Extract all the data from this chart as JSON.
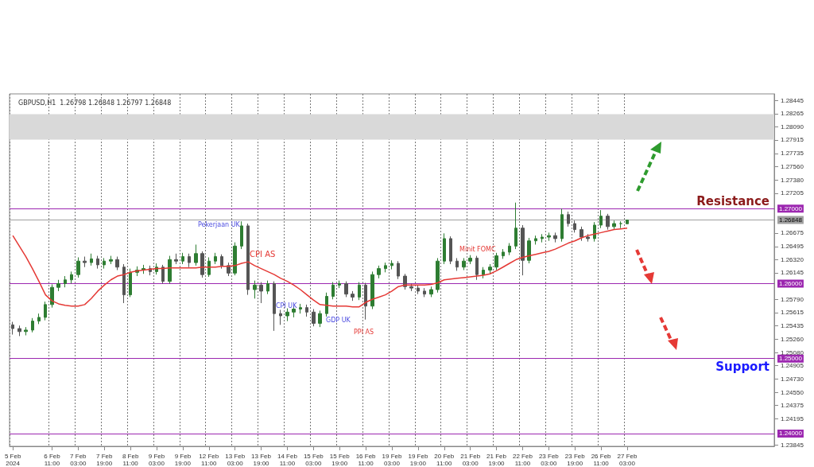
{
  "chart_data": {
    "type": "candlestick",
    "title": "GBPUSD,H1  1.26798 1.26848 1.26797 1.26848",
    "categories": [
      "5 Feb 2024",
      null,
      null,
      null,
      null,
      null,
      "6 Feb 11:00",
      null,
      null,
      null,
      "7 Feb 03:00",
      null,
      null,
      null,
      "7 Feb 19:00",
      null,
      null,
      null,
      "8 Feb 11:00",
      null,
      null,
      null,
      "9 Feb 03:00",
      null,
      null,
      null,
      "9 Feb 19:00",
      null,
      null,
      null,
      "12 Feb 11:00",
      null,
      null,
      null,
      "13 Feb 03:00",
      null,
      null,
      null,
      "13 Feb 19:00",
      null,
      null,
      null,
      "14 Feb 11:00",
      null,
      null,
      null,
      "15 Feb 03:00",
      null,
      null,
      null,
      "15 Feb 19:00",
      null,
      null,
      null,
      "16 Feb 11:00",
      null,
      null,
      null,
      "19 Feb 03:00",
      null,
      null,
      null,
      "19 Feb 19:00",
      null,
      null,
      null,
      "20 Feb 11:00",
      null,
      null,
      null,
      "21 Feb 03:00",
      null,
      null,
      null,
      "21 Feb 19:00",
      null,
      null,
      null,
      "22 Feb 11:00",
      null,
      null,
      null,
      "23 Feb 03:00",
      null,
      null,
      null,
      "23 Feb 19:00",
      null,
      null,
      null,
      "26 Feb 11:00",
      null,
      null,
      null,
      "27 Feb 03:00",
      null,
      null,
      null,
      null,
      null,
      null,
      null,
      null,
      null,
      null,
      null,
      null,
      null,
      null,
      null,
      null,
      null,
      null,
      null,
      null,
      null,
      null
    ],
    "ohlc": [
      [
        1.2545,
        1.2549,
        1.2532,
        1.254
      ],
      [
        1.254,
        1.2544,
        1.253,
        1.2536
      ],
      [
        1.2536,
        1.2542,
        1.2531,
        1.2538
      ],
      [
        1.2538,
        1.2554,
        1.2535,
        1.255
      ],
      [
        1.255,
        1.256,
        1.2546,
        1.2555
      ],
      [
        1.2555,
        1.2576,
        1.2551,
        1.2572
      ],
      [
        1.2572,
        1.2599,
        1.2568,
        1.2595
      ],
      [
        1.2595,
        1.2605,
        1.259,
        1.26
      ],
      [
        1.26,
        1.261,
        1.2595,
        1.2605
      ],
      [
        1.2605,
        1.2616,
        1.26,
        1.2612
      ],
      [
        1.2612,
        1.2635,
        1.2608,
        1.263
      ],
      [
        1.263,
        1.2636,
        1.2622,
        1.2628
      ],
      [
        1.2628,
        1.264,
        1.2624,
        1.2633
      ],
      [
        1.2633,
        1.2637,
        1.262,
        1.2625
      ],
      [
        1.2625,
        1.2634,
        1.262,
        1.263
      ],
      [
        1.263,
        1.2637,
        1.2626,
        1.2632
      ],
      [
        1.2632,
        1.2636,
        1.2618,
        1.2622
      ],
      [
        1.2622,
        1.2626,
        1.2574,
        1.2585
      ],
      [
        1.2585,
        1.262,
        1.2582,
        1.2615
      ],
      [
        1.2615,
        1.2623,
        1.261,
        1.2618
      ],
      [
        1.2618,
        1.2625,
        1.2613,
        1.262
      ],
      [
        1.262,
        1.2624,
        1.2611,
        1.2616
      ],
      [
        1.2616,
        1.2627,
        1.2612,
        1.2622
      ],
      [
        1.2622,
        1.2625,
        1.26,
        1.2603
      ],
      [
        1.2603,
        1.2637,
        1.26,
        1.2632
      ],
      [
        1.2632,
        1.264,
        1.2626,
        1.263
      ],
      [
        1.263,
        1.2641,
        1.2626,
        1.2636
      ],
      [
        1.2636,
        1.264,
        1.2622,
        1.2628
      ],
      [
        1.2628,
        1.2652,
        1.2624,
        1.264
      ],
      [
        1.264,
        1.2643,
        1.2608,
        1.2612
      ],
      [
        1.2612,
        1.2635,
        1.2609,
        1.263
      ],
      [
        1.263,
        1.2641,
        1.2626,
        1.2636
      ],
      [
        1.2636,
        1.2639,
        1.262,
        1.2624
      ],
      [
        1.2624,
        1.2628,
        1.261,
        1.2614
      ],
      [
        1.2614,
        1.2655,
        1.2611,
        1.265
      ],
      [
        1.265,
        1.2683,
        1.2646,
        1.2677
      ],
      [
        1.2677,
        1.268,
        1.2585,
        1.2592
      ],
      [
        1.2592,
        1.2604,
        1.258,
        1.2598
      ],
      [
        1.2598,
        1.2602,
        1.2574,
        1.259
      ],
      [
        1.259,
        1.2604,
        1.2586,
        1.26
      ],
      [
        1.26,
        1.2603,
        1.2537,
        1.256
      ],
      [
        1.256,
        1.2565,
        1.2545,
        1.2557
      ],
      [
        1.2557,
        1.2567,
        1.255,
        1.2562
      ],
      [
        1.2562,
        1.257,
        1.2555,
        1.2566
      ],
      [
        1.2566,
        1.2573,
        1.256,
        1.2568
      ],
      [
        1.2568,
        1.2572,
        1.2556,
        1.2562
      ],
      [
        1.2562,
        1.2566,
        1.2543,
        1.2547
      ],
      [
        1.2547,
        1.2564,
        1.2542,
        1.256
      ],
      [
        1.256,
        1.2588,
        1.2556,
        1.2583
      ],
      [
        1.2583,
        1.2602,
        1.2579,
        1.2598
      ],
      [
        1.2598,
        1.2604,
        1.2594,
        1.26
      ],
      [
        1.26,
        1.2603,
        1.2582,
        1.2586
      ],
      [
        1.2586,
        1.259,
        1.2577,
        1.2582
      ],
      [
        1.2582,
        1.2602,
        1.2578,
        1.2598
      ],
      [
        1.2598,
        1.2601,
        1.2552,
        1.257
      ],
      [
        1.257,
        1.2616,
        1.2566,
        1.2612
      ],
      [
        1.2612,
        1.2624,
        1.2607,
        1.262
      ],
      [
        1.262,
        1.2628,
        1.2615,
        1.2624
      ],
      [
        1.2624,
        1.2631,
        1.2619,
        1.2627
      ],
      [
        1.2627,
        1.263,
        1.2606,
        1.261
      ],
      [
        1.261,
        1.2613,
        1.2592,
        1.2596
      ],
      [
        1.2596,
        1.26,
        1.259,
        1.2594
      ],
      [
        1.2594,
        1.2598,
        1.2586,
        1.259
      ],
      [
        1.259,
        1.2594,
        1.2582,
        1.2586
      ],
      [
        1.2586,
        1.2596,
        1.2582,
        1.2592
      ],
      [
        1.2592,
        1.2634,
        1.2588,
        1.263
      ],
      [
        1.263,
        1.2667,
        1.2626,
        1.266
      ],
      [
        1.266,
        1.2663,
        1.2626,
        1.263
      ],
      [
        1.263,
        1.2634,
        1.2617,
        1.2622
      ],
      [
        1.2622,
        1.2634,
        1.2618,
        1.263
      ],
      [
        1.263,
        1.2638,
        1.2626,
        1.2634
      ],
      [
        1.2634,
        1.2637,
        1.2605,
        1.2612
      ],
      [
        1.2612,
        1.2622,
        1.2607,
        1.2618
      ],
      [
        1.2618,
        1.2626,
        1.2613,
        1.2622
      ],
      [
        1.2622,
        1.2641,
        1.2618,
        1.2637
      ],
      [
        1.2637,
        1.2646,
        1.2633,
        1.2642
      ],
      [
        1.2642,
        1.2654,
        1.2638,
        1.265
      ],
      [
        1.265,
        1.2708,
        1.2646,
        1.2674
      ],
      [
        1.2674,
        1.2678,
        1.2611,
        1.2631
      ],
      [
        1.2631,
        1.2661,
        1.2627,
        1.2657
      ],
      [
        1.2657,
        1.2664,
        1.2652,
        1.266
      ],
      [
        1.266,
        1.2666,
        1.2655,
        1.2662
      ],
      [
        1.2662,
        1.2668,
        1.2657,
        1.2664
      ],
      [
        1.2664,
        1.2668,
        1.2655,
        1.266
      ],
      [
        1.266,
        1.27,
        1.2656,
        1.2692
      ],
      [
        1.2692,
        1.2696,
        1.2676,
        1.268
      ],
      [
        1.268,
        1.2684,
        1.2668,
        1.2672
      ],
      [
        1.2672,
        1.2676,
        1.2657,
        1.2662
      ],
      [
        1.2662,
        1.2666,
        1.2656,
        1.266
      ],
      [
        1.266,
        1.2682,
        1.2656,
        1.2678
      ],
      [
        1.2678,
        1.2698,
        1.2674,
        1.269
      ],
      [
        1.269,
        1.2693,
        1.2672,
        1.2676
      ],
      [
        1.2676,
        1.2684,
        1.2672,
        1.268
      ],
      [
        1.268,
        1.2683,
        1.2674,
        1.268
      ],
      [
        1.26798,
        1.26848,
        1.26797,
        1.26848
      ],
      null,
      null,
      null,
      null,
      null,
      null,
      null,
      null,
      null,
      null,
      null,
      null,
      null,
      null,
      null,
      null,
      null,
      null,
      null,
      null,
      null,
      null
    ],
    "series": [
      {
        "type": "line",
        "color": "#e53935",
        "values": [
          1.2664,
          1.265,
          1.2636,
          1.262,
          1.2603,
          1.2585,
          1.2577,
          1.2573,
          1.2571,
          1.257,
          1.257,
          1.2572,
          1.258,
          1.259,
          1.2598,
          1.2605,
          1.261,
          1.2612,
          1.2615,
          1.2617,
          1.2618,
          1.2619,
          1.262,
          1.262,
          1.2621,
          1.2621,
          1.2621,
          1.2621,
          1.2621,
          1.2622,
          1.2622,
          1.2622,
          1.2623,
          1.2623,
          1.2624,
          1.2627,
          1.2629,
          1.2624,
          1.262,
          1.2616,
          1.2612,
          1.2607,
          1.2603,
          1.2598,
          1.2592,
          1.2585,
          1.2578,
          1.2572,
          1.2571,
          1.257,
          1.257,
          1.257,
          1.2569,
          1.2569,
          1.2575,
          1.2579,
          1.2582,
          1.2585,
          1.259,
          1.2596,
          1.2598,
          1.2598,
          1.2598,
          1.2598,
          1.2599,
          1.2601,
          1.2605,
          1.2606,
          1.2607,
          1.2608,
          1.2609,
          1.261,
          1.2611,
          1.2613,
          1.2617,
          1.2622,
          1.2627,
          1.2632,
          1.2635,
          1.2637,
          1.2639,
          1.2641,
          1.2643,
          1.2646,
          1.265,
          1.2654,
          1.2657,
          1.2661,
          1.2664,
          1.2666,
          1.2668,
          1.267,
          1.2672,
          1.2673,
          1.2674,
          null,
          null,
          null,
          null,
          null,
          null,
          null,
          null,
          null,
          null,
          null,
          null,
          null,
          null,
          null,
          null,
          null,
          null,
          null,
          null,
          null,
          null
        ]
      }
    ],
    "marker": "none",
    "line_style": "solid",
    "ylim": [
      1.2383,
      1.2853
    ],
    "yticks": [
      1.28445,
      1.28265,
      {
        "value": 1.2809,
        "label": "1.28090"
      },
      1.27915,
      1.27735,
      {
        "value": 1.2756,
        "label": "1.27560"
      },
      {
        "value": 1.2738,
        "label": "1.27380"
      },
      1.27205,
      1.26675,
      1.26495,
      {
        "value": 1.2632,
        "label": "1.26320"
      },
      1.26145,
      {
        "value": 1.2579,
        "label": "1.25790"
      },
      1.25615,
      1.25435,
      {
        "value": 1.2526,
        "label": "1.25260"
      },
      {
        "value": 1.2508,
        "label": "1.25080"
      },
      1.24905,
      {
        "value": 1.2473,
        "label": "1.24730"
      },
      {
        "value": 1.2455,
        "label": "1.24550"
      },
      1.24375,
      1.24195,
      1.23845
    ],
    "ref_lines": [
      {
        "axis": "y",
        "value": 1.27,
        "label": "1.27000",
        "color": "#9c27b0"
      },
      {
        "axis": "y",
        "value": 1.26,
        "label": "1.26000",
        "color": "#9c27b0"
      },
      {
        "axis": "y",
        "value": 1.25,
        "label": "1.25000",
        "color": "#9c27b0"
      },
      {
        "axis": "y",
        "value": 1.24,
        "label": "1.24000",
        "color": "#9c27b0"
      },
      {
        "axis": "y",
        "value": 1.26848,
        "label": "1.26848",
        "color": "#a0a0a0"
      }
    ],
    "bands": [
      {
        "axis": "y",
        "from": 1.2792,
        "to": 1.2826,
        "color": "#d9d9d9"
      }
    ],
    "annotations": [
      {
        "text": "Resistance",
        "y": 1.27
      },
      {
        "text": "Support",
        "y": 1.25
      },
      "Pekerjaan UK",
      "CPI AS",
      "CPI UK",
      "GDP UK",
      "PPI AS",
      "Minit FOMC"
    ],
    "grid": "x"
  }
}
